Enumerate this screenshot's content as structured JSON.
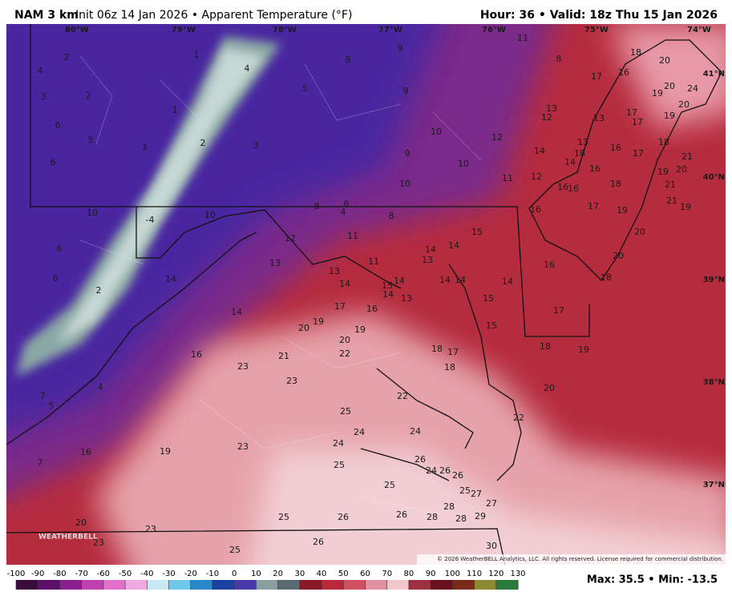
{
  "header": {
    "model": "NAM 3 km",
    "run": "Init 06z 14 Jan 2026 • Apparent Temperature (°F)",
    "valid": "Hour: 36 • Valid: 18z Thu 15 Jan 2026"
  },
  "longitudes": [
    "80°W",
    "79°W",
    "78°W",
    "77°W",
    "76°W",
    "75°W",
    "74°W"
  ],
  "latitudes": [
    "41°N",
    "40°N",
    "39°N",
    "38°N",
    "37°N"
  ],
  "map_labels": [
    2,
    4,
    3,
    2,
    1,
    4,
    8,
    9,
    11,
    8,
    18,
    20,
    17,
    16,
    5,
    1,
    9,
    20,
    24,
    19,
    20,
    6,
    5,
    3,
    2,
    3,
    10,
    12,
    13,
    12,
    13,
    17,
    17,
    19,
    13,
    16,
    17,
    18,
    6,
    9,
    10,
    14,
    14,
    18,
    16,
    21,
    19,
    20,
    10,
    11,
    12,
    16,
    16,
    18,
    21,
    21,
    19,
    6,
    8,
    10,
    -4,
    10,
    4,
    8,
    16,
    17,
    19,
    11,
    15,
    12,
    20,
    6,
    14,
    14,
    11,
    13,
    13,
    16,
    20,
    6,
    14,
    13,
    14,
    14,
    14,
    14,
    18,
    2,
    14,
    14,
    13,
    15,
    16,
    17,
    15,
    17,
    14,
    19,
    20,
    15,
    19,
    20,
    18,
    17,
    18,
    19,
    16,
    21,
    22,
    18,
    23,
    23,
    4,
    20,
    7,
    5,
    22,
    25,
    22,
    24,
    24,
    24,
    23,
    19,
    16,
    7,
    26,
    25,
    24,
    26,
    26,
    25,
    25,
    27,
    27,
    28,
    25,
    26,
    26,
    28,
    28,
    29,
    20,
    23,
    23,
    26,
    25,
    30
  ],
  "copyright": "© 2026 WeatherBELL Analytics, LLC. All rights reserved. License required for commercial distribution.",
  "logo": "WEATHERBELL",
  "colorbar": {
    "ticks": [
      -100,
      -90,
      -80,
      -70,
      -60,
      -50,
      -40,
      -30,
      -20,
      -10,
      0,
      10,
      20,
      30,
      40,
      50,
      60,
      70,
      80,
      90,
      100,
      110,
      120,
      130
    ],
    "colors": [
      "#3a0a3a",
      "#5a106a",
      "#8a2090",
      "#c040b0",
      "#e070c8",
      "#f0a8e0",
      "#c8e8f4",
      "#70c8e8",
      "#2a88c8",
      "#1a40a0",
      "#4a3aa8",
      "#8aa0a0",
      "#5a6a70",
      "#8a1a2a",
      "#b82a3a",
      "#d05060",
      "#e090a0",
      "#f0c8cc",
      "#9a3040",
      "#6a1020",
      "#7a2a1a",
      "#8a8a30",
      "#2a7a40"
    ]
  },
  "stats": "Max: 35.5 • Min: -13.5"
}
